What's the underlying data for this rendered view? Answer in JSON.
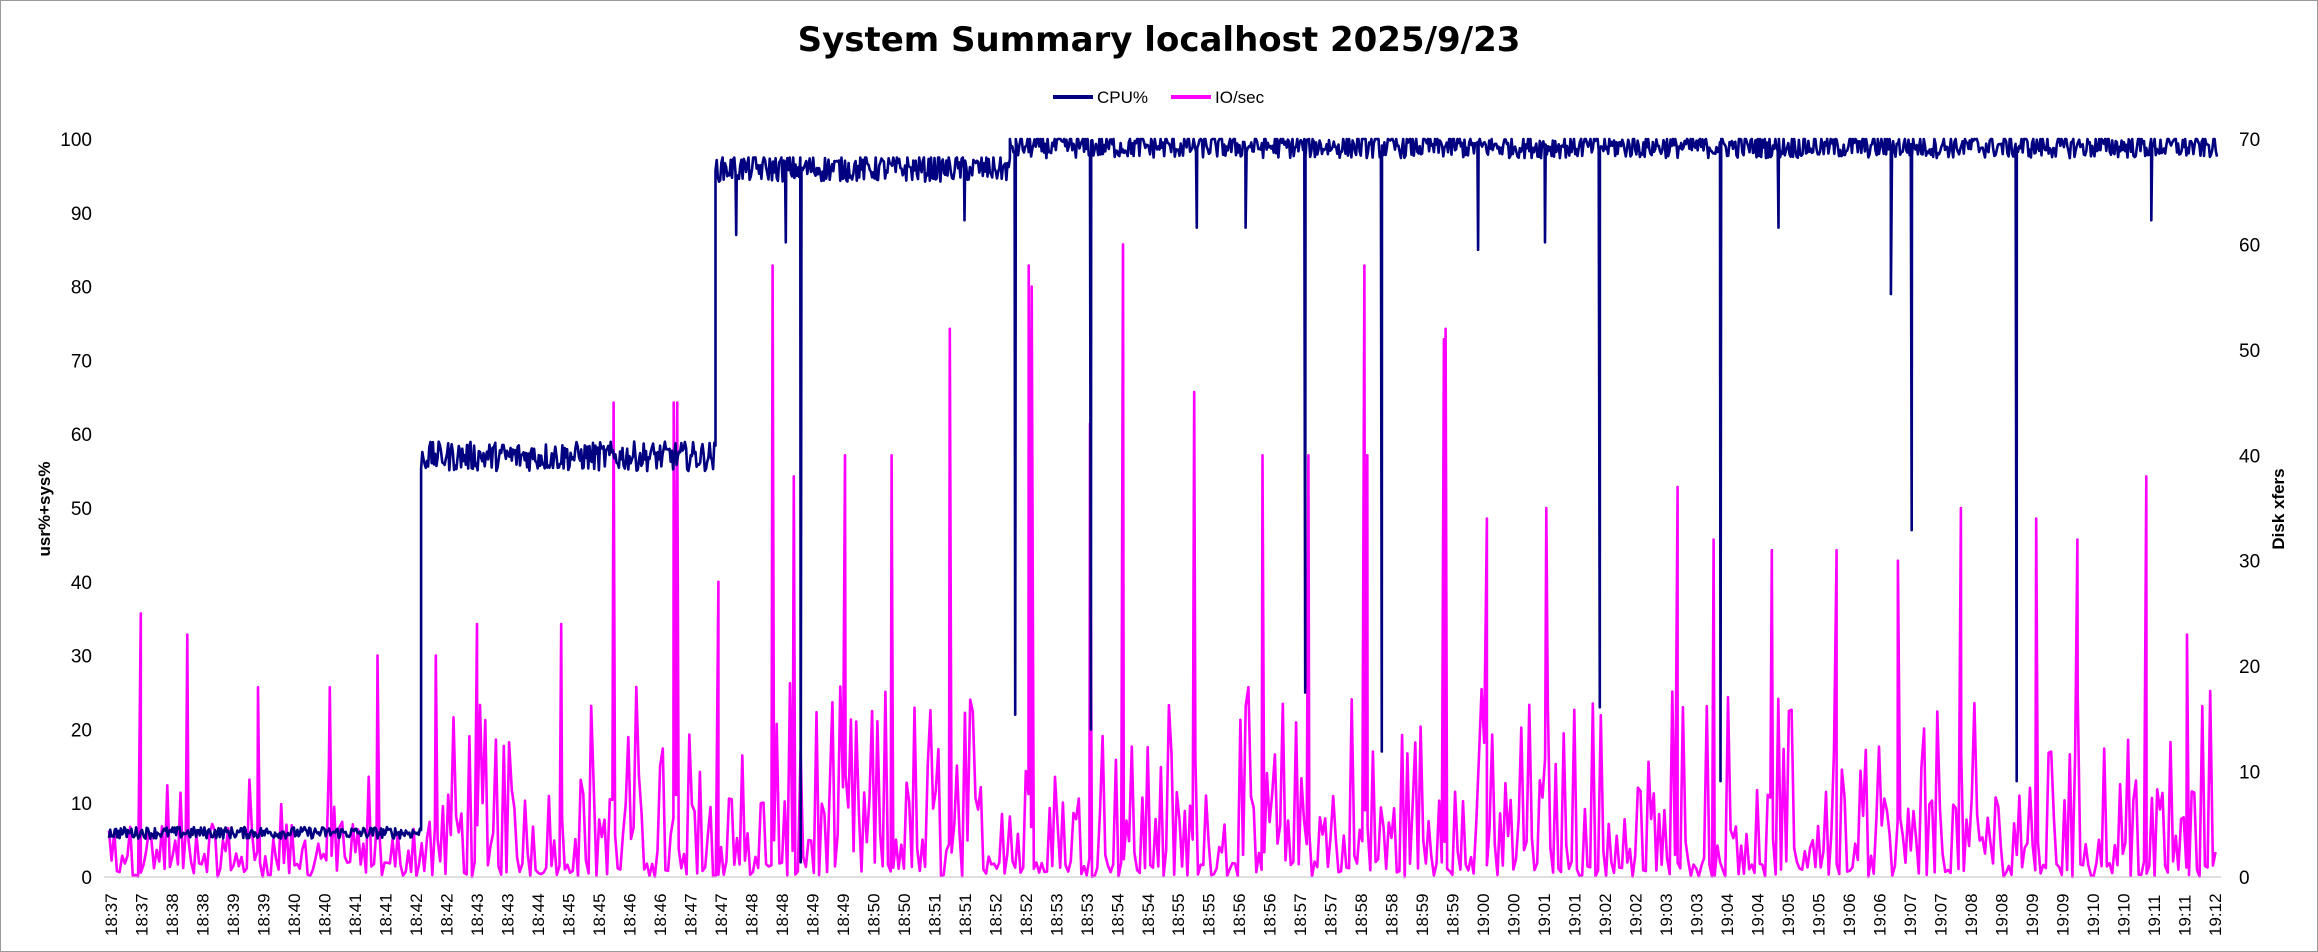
{
  "chart_data": {
    "type": "line",
    "title": "System Summary localhost  2025/9/23",
    "ylabel": "usr%+sys%",
    "y2label": "Disk xfers",
    "ylim": [
      0,
      100
    ],
    "y2lim": [
      0,
      70
    ],
    "yticks": [
      "0",
      "10",
      "20",
      "30",
      "40",
      "50",
      "60",
      "70",
      "80",
      "90",
      "100"
    ],
    "y2ticks": [
      "0",
      "10",
      "20",
      "30",
      "40",
      "50",
      "60",
      "70"
    ],
    "grid": false,
    "legend_position": "top-center",
    "series": [
      {
        "name": "CPU%",
        "axis": "left",
        "color": "#000080",
        "segments": [
          {
            "from": "18:37",
            "to": "18:42",
            "level": 6,
            "min": 5,
            "max": 7
          },
          {
            "from": "18:42",
            "to": "18:47",
            "level": 57,
            "min": 55,
            "max": 60
          },
          {
            "from": "18:47",
            "to": "18:52",
            "level": 96,
            "min": 93,
            "max": 97.5
          },
          {
            "from": "18:52",
            "to": "19:12",
            "level": 99,
            "min": 96,
            "max": 100
          }
        ],
        "dips": [
          {
            "time": "18:47",
            "value": 87
          },
          {
            "time": "18:48",
            "value": 2
          },
          {
            "time": "18:48",
            "value": 86
          },
          {
            "time": "18:51",
            "value": 89
          },
          {
            "time": "18:52",
            "value": 22
          },
          {
            "time": "18:53",
            "value": 20
          },
          {
            "time": "18:55",
            "value": 88
          },
          {
            "time": "18:56",
            "value": 88
          },
          {
            "time": "18:57",
            "value": 25
          },
          {
            "time": "18:58",
            "value": 17
          },
          {
            "time": "19:00",
            "value": 85
          },
          {
            "time": "19:01",
            "value": 86
          },
          {
            "time": "19:02",
            "value": 23
          },
          {
            "time": "19:04",
            "value": 13
          },
          {
            "time": "19:05",
            "value": 88
          },
          {
            "time": "19:07",
            "value": 47
          },
          {
            "time": "19:07",
            "value": 79
          },
          {
            "time": "19:09",
            "value": 13
          },
          {
            "time": "19:11",
            "value": 89
          }
        ]
      },
      {
        "name": "IO/sec",
        "axis": "right",
        "color": "#ff00ff",
        "typical_range": [
          0,
          12
        ],
        "peaks": [
          {
            "time": "18:37",
            "value": 25
          },
          {
            "time": "18:38",
            "value": 23
          },
          {
            "time": "18:39",
            "value": 18
          },
          {
            "time": "18:40",
            "value": 18
          },
          {
            "time": "18:41",
            "value": 21
          },
          {
            "time": "18:42",
            "value": 21
          },
          {
            "time": "18:43",
            "value": 24
          },
          {
            "time": "18:44",
            "value": 24
          },
          {
            "time": "18:45",
            "value": 45
          },
          {
            "time": "18:46",
            "value": 45
          },
          {
            "time": "18:46",
            "value": 45
          },
          {
            "time": "18:47",
            "value": 28
          },
          {
            "time": "18:48",
            "value": 38
          },
          {
            "time": "18:48",
            "value": 58
          },
          {
            "time": "18:49",
            "value": 40
          },
          {
            "time": "18:50",
            "value": 40
          },
          {
            "time": "18:51",
            "value": 52
          },
          {
            "time": "18:52",
            "value": 58
          },
          {
            "time": "18:52",
            "value": 56
          },
          {
            "time": "18:53",
            "value": 43
          },
          {
            "time": "18:54",
            "value": 60
          },
          {
            "time": "18:55",
            "value": 46
          },
          {
            "time": "18:56",
            "value": 40
          },
          {
            "time": "18:57",
            "value": 40
          },
          {
            "time": "18:58",
            "value": 58
          },
          {
            "time": "18:58",
            "value": 40
          },
          {
            "time": "18:59",
            "value": 52
          },
          {
            "time": "18:59",
            "value": 51
          },
          {
            "time": "19:00",
            "value": 34
          },
          {
            "time": "19:01",
            "value": 35
          },
          {
            "time": "19:03",
            "value": 37
          },
          {
            "time": "19:04",
            "value": 32
          },
          {
            "time": "19:05",
            "value": 31
          },
          {
            "time": "19:06",
            "value": 31
          },
          {
            "time": "19:07",
            "value": 30
          },
          {
            "time": "19:08",
            "value": 35
          },
          {
            "time": "19:09",
            "value": 34
          },
          {
            "time": "19:10",
            "value": 32
          },
          {
            "time": "19:11",
            "value": 38
          },
          {
            "time": "19:12",
            "value": 23
          }
        ]
      }
    ],
    "x_labels": [
      "18:37",
      "18:37",
      "18:38",
      "18:38",
      "18:39",
      "18:39",
      "18:40",
      "18:40",
      "18:41",
      "18:41",
      "18:42",
      "18:42",
      "18:43",
      "18:43",
      "18:44",
      "18:45",
      "18:45",
      "18:46",
      "18:46",
      "18:47",
      "18:47",
      "18:48",
      "18:48",
      "18:49",
      "18:49",
      "18:50",
      "18:50",
      "18:51",
      "18:51",
      "18:52",
      "18:52",
      "18:53",
      "18:53",
      "18:54",
      "18:54",
      "18:55",
      "18:55",
      "18:56",
      "18:56",
      "18:57",
      "18:57",
      "18:58",
      "18:58",
      "18:59",
      "18:59",
      "19:00",
      "19:00",
      "19:01",
      "19:01",
      "19:02",
      "19:02",
      "19:03",
      "19:03",
      "19:04",
      "19:04",
      "19:05",
      "19:05",
      "19:06",
      "19:06",
      "19:07",
      "19:07",
      "19:08",
      "19:08",
      "19:09",
      "19:09",
      "19:10",
      "19:10",
      "19:11",
      "19:11",
      "19:12"
    ]
  }
}
